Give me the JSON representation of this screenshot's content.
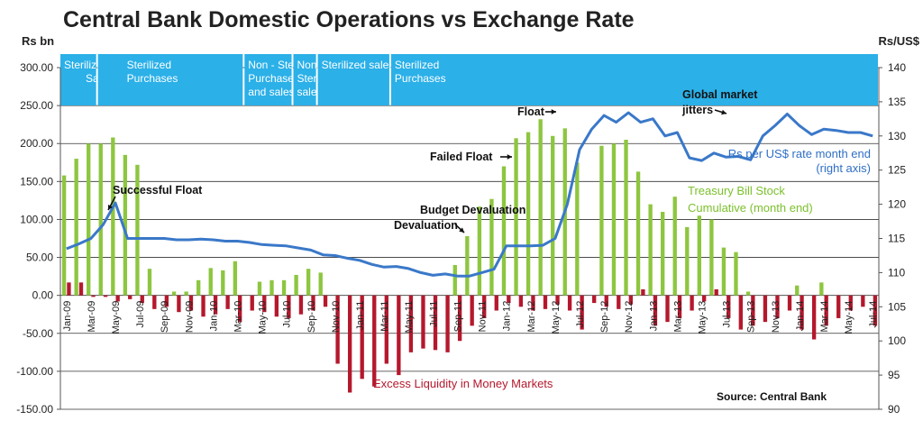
{
  "title": "Central Bank Domestic Operations vs Exchange Rate",
  "chart_data": {
    "type": "bar",
    "y_left_label": "Rs bn",
    "y_right_label": "Rs/US$",
    "y_left_range": [
      -150,
      300
    ],
    "y_right_range": [
      90,
      140
    ],
    "y_left_ticks": [
      "300.00",
      "250.00",
      "200.00",
      "150.00",
      "100.00",
      "50.00",
      "0.00",
      "-50.00",
      "-100.00",
      "-150.00"
    ],
    "y_right_ticks": [
      "140",
      "135",
      "130",
      "125",
      "120",
      "115",
      "110",
      "105",
      "100",
      "95",
      "90"
    ],
    "x_tick_labels": [
      "Jan-09",
      "Mar-09",
      "May-09",
      "Jul-09",
      "Sep-09",
      "Nov-09",
      "Jan-10",
      "Mar-10",
      "May-10",
      "Jul-10",
      "Sep-10",
      "Nov-10",
      "Jan-11",
      "Mar-11",
      "May-11",
      "Jul-11",
      "Sep-11",
      "Nov-11",
      "Jan-12",
      "Mar-12",
      "May-12",
      "Jul-12",
      "Sep-12",
      "Nov-12",
      "Jan-13",
      "Mar-13",
      "May-13",
      "Jul-13",
      "Sep-13",
      "Nov-13",
      "Jan-14",
      "Mar-14",
      "May-14",
      "Jul-14"
    ],
    "months": [
      "Jan-09",
      "Feb-09",
      "Mar-09",
      "Apr-09",
      "May-09",
      "Jun-09",
      "Jul-09",
      "Aug-09",
      "Sep-09",
      "Oct-09",
      "Nov-09",
      "Dec-09",
      "Jan-10",
      "Feb-10",
      "Mar-10",
      "Apr-10",
      "May-10",
      "Jun-10",
      "Jul-10",
      "Aug-10",
      "Sep-10",
      "Oct-10",
      "Nov-10",
      "Dec-10",
      "Jan-11",
      "Feb-11",
      "Mar-11",
      "Apr-11",
      "May-11",
      "Jun-11",
      "Jul-11",
      "Aug-11",
      "Sep-11",
      "Oct-11",
      "Nov-11",
      "Dec-11",
      "Jan-12",
      "Feb-12",
      "Mar-12",
      "Apr-12",
      "May-12",
      "Jun-12",
      "Jul-12",
      "Aug-12",
      "Sep-12",
      "Oct-12",
      "Nov-12",
      "Dec-12",
      "Jan-13",
      "Feb-13",
      "Mar-13",
      "Apr-13",
      "May-13",
      "Jun-13",
      "Jul-13",
      "Aug-13",
      "Sep-13",
      "Oct-13",
      "Nov-13",
      "Dec-13",
      "Jan-14",
      "Feb-14",
      "Mar-14",
      "Apr-14",
      "May-14",
      "Jun-14",
      "Jul-14"
    ],
    "series": [
      {
        "name": "Treasury Bill Stock Cumulative (month end)",
        "color": "#8dc63f",
        "axis": "left",
        "values": [
          158,
          180,
          200,
          200,
          208,
          185,
          172,
          35,
          0,
          5,
          5,
          20,
          36,
          33,
          45,
          0,
          18,
          20,
          20,
          27,
          35,
          30,
          0,
          0,
          0,
          0,
          0,
          0,
          0,
          0,
          0,
          0,
          40,
          78,
          117,
          127,
          170,
          207,
          215,
          232,
          210,
          220,
          175,
          0,
          197,
          200,
          205,
          163,
          120,
          110,
          130,
          90,
          105,
          100,
          63,
          57,
          5,
          0,
          0,
          0,
          13,
          0,
          17,
          0,
          0,
          0,
          0
        ]
      },
      {
        "name": "Excess Liquidity in Money Markets",
        "color": "#b5182d",
        "axis": "left",
        "values": [
          17,
          17,
          -2,
          -2,
          -8,
          -5,
          -10,
          -18,
          -15,
          -22,
          -20,
          -28,
          -25,
          -18,
          -35,
          -20,
          -22,
          -28,
          -30,
          -25,
          -20,
          -15,
          -90,
          -128,
          -110,
          -120,
          -90,
          -105,
          -75,
          -70,
          -72,
          -75,
          -60,
          -40,
          -30,
          -20,
          -10,
          -15,
          -20,
          -18,
          -12,
          -20,
          -45,
          -10,
          -15,
          -18,
          -12,
          8,
          -40,
          -35,
          -30,
          -20,
          -8,
          8,
          -30,
          -45,
          -40,
          -35,
          -30,
          -20,
          -45,
          -58,
          -40,
          -30,
          -20,
          -15,
          -40
        ]
      },
      {
        "name": "Rs per US$ rate month end (right axis)",
        "color": "#3a78c9",
        "axis": "right",
        "values": [
          113.5,
          114.2,
          115.0,
          117.0,
          120.2,
          115.0,
          115.0,
          115.0,
          115.0,
          114.8,
          114.8,
          114.9,
          114.8,
          114.6,
          114.6,
          114.4,
          114.1,
          114.0,
          113.9,
          113.6,
          113.3,
          112.6,
          112.5,
          112.1,
          111.8,
          111.2,
          110.8,
          110.9,
          110.6,
          110.0,
          109.6,
          109.8,
          109.5,
          109.5,
          110.0,
          110.5,
          113.9,
          113.9,
          113.9,
          114.0,
          115.0,
          120.0,
          128.0,
          131.0,
          133.0,
          132.0,
          133.4,
          132.0,
          132.5,
          130.0,
          130.5,
          126.8,
          126.4,
          127.5,
          126.9,
          127.0,
          126.5,
          130.0,
          131.5,
          133.2,
          131.5,
          130.2,
          131.0,
          130.8,
          130.5,
          130.5,
          130.0
        ]
      }
    ],
    "regime_labels": [
      "Sterilized Sales",
      "Sterilized Purchases",
      "Non - Sterilized Purchases and sales",
      "Non Sterilized sales",
      "Sterilized sales",
      "Sterilized Purchases"
    ],
    "annotations": {
      "successful_float": "Successful Float",
      "budget_devaluation": "Budget Devaluation",
      "failed_float": "Failed Float",
      "float": "Float",
      "global_market_jitters": "Global market jitters",
      "rate_label_1": "Rs per US$ rate month end",
      "rate_label_2": "(right axis)",
      "tbill_label_1": "Treasury Bill Stock",
      "tbill_label_2": "Cumulative (month end)",
      "excess_liquidity": "Excess Liquidity in Money Markets"
    },
    "source": "Source: Central Bank",
    "grid": true
  }
}
